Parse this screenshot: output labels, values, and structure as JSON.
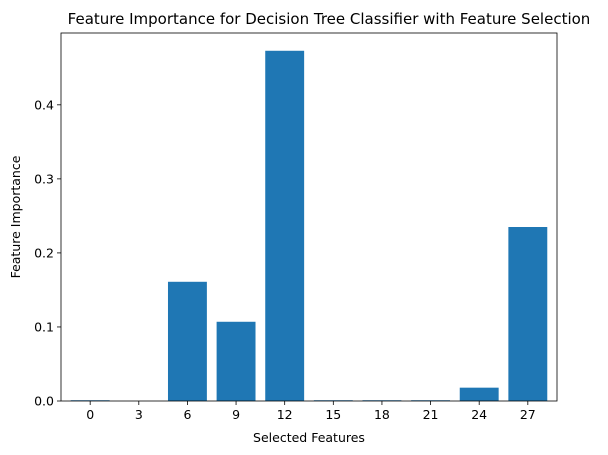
{
  "chart_data": {
    "type": "bar",
    "title": "Feature Importance for Decision Tree Classifier with Feature Selection",
    "xlabel": "Selected Features",
    "ylabel": "Feature Importance",
    "categories": [
      "0",
      "3",
      "6",
      "9",
      "12",
      "15",
      "18",
      "21",
      "24",
      "27"
    ],
    "values": [
      0.001,
      0.0,
      0.161,
      0.107,
      0.473,
      0.001,
      0.001,
      0.001,
      0.018,
      0.235
    ],
    "yticks": [
      0.0,
      0.1,
      0.2,
      0.3,
      0.4
    ],
    "ylim": [
      0,
      0.497
    ],
    "grid": false,
    "bar_color": "#1f77b4"
  }
}
